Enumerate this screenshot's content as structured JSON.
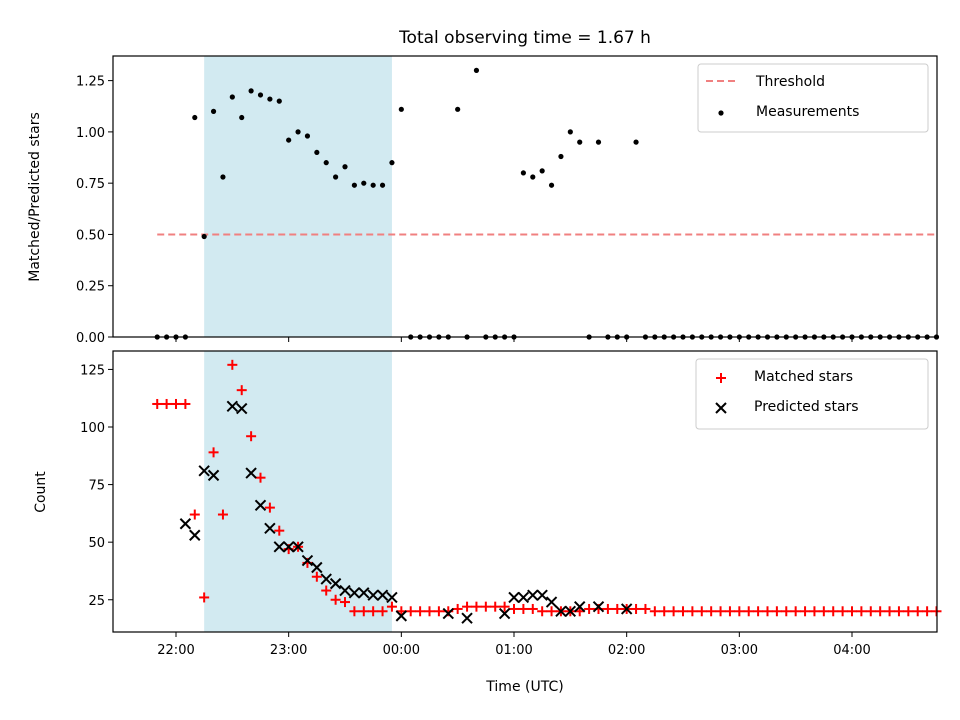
{
  "chart_data": [
    {
      "type": "scatter",
      "title": "Total observing time = 1.67 h",
      "xlabel": "",
      "ylabel": "Matched/Predicted stars",
      "xlim": [
        "21:30",
        "04:50"
      ],
      "ylim": [
        0,
        1.37
      ],
      "yticks": [
        "0.00",
        "0.25",
        "0.50",
        "0.75",
        "1.00",
        "1.25"
      ],
      "grid": false,
      "legend_position": "top-right",
      "shaded_interval": {
        "start": "22:15",
        "end": "23:55",
        "color": "#add8e6"
      },
      "threshold": {
        "name": "Threshold",
        "value": 0.5,
        "x_start": "21:50",
        "x_end": "04:45",
        "color": "#f08080",
        "style": "dashed"
      },
      "series": [
        {
          "name": "Measurements",
          "color": "#000000",
          "marker": "dot",
          "x": [
            "21:50",
            "21:55",
            "22:00",
            "22:05",
            "22:10",
            "22:15",
            "22:20",
            "22:25",
            "22:30",
            "22:35",
            "22:40",
            "22:45",
            "22:50",
            "22:55",
            "23:00",
            "23:05",
            "23:10",
            "23:15",
            "23:20",
            "23:25",
            "23:30",
            "23:35",
            "23:40",
            "23:45",
            "23:50",
            "23:55",
            "00:00",
            "00:05",
            "00:10",
            "00:15",
            "00:20",
            "00:25",
            "00:30",
            "00:35",
            "00:40",
            "00:45",
            "00:50",
            "00:55",
            "01:00",
            "01:05",
            "01:10",
            "01:15",
            "01:20",
            "01:25",
            "01:30",
            "01:35",
            "01:40",
            "01:45",
            "01:50",
            "01:55",
            "02:00",
            "02:05",
            "02:10",
            "02:15",
            "02:20",
            "02:25",
            "02:30",
            "02:35",
            "02:40",
            "02:45",
            "02:50",
            "02:55",
            "03:00",
            "03:05",
            "03:10",
            "03:15",
            "03:20",
            "03:25",
            "03:30",
            "03:35",
            "03:40",
            "03:45",
            "03:50",
            "03:55",
            "04:00",
            "04:05",
            "04:10",
            "04:15",
            "04:20",
            "04:25",
            "04:30",
            "04:35",
            "04:40",
            "04:45"
          ],
          "y": [
            0,
            0,
            0,
            0,
            1.07,
            0.49,
            1.1,
            0.78,
            1.17,
            1.07,
            1.2,
            1.18,
            1.16,
            1.15,
            0.96,
            1.0,
            0.98,
            0.9,
            0.85,
            0.78,
            0.83,
            0.74,
            0.75,
            0.74,
            0.74,
            0.85,
            1.11,
            0,
            0,
            0,
            0,
            0,
            1.11,
            0,
            1.3,
            0,
            0,
            0,
            0,
            0.8,
            0.78,
            0.81,
            0.74,
            0.88,
            1.0,
            0.95,
            0,
            0.95,
            0,
            0,
            0,
            0.95,
            0,
            0,
            0,
            0,
            0,
            0,
            0,
            0,
            0,
            0,
            0,
            0,
            0,
            0,
            0,
            0,
            0,
            0,
            0,
            0,
            0,
            0,
            0,
            0,
            0,
            0,
            0,
            0,
            0,
            0,
            0,
            0
          ]
        }
      ]
    },
    {
      "type": "scatter",
      "title": "",
      "xlabel": "Time (UTC)",
      "ylabel": "Count",
      "xlim": [
        "21:30",
        "04:50"
      ],
      "ylim": [
        11,
        133
      ],
      "yticks": [
        "25",
        "50",
        "75",
        "100",
        "125"
      ],
      "xticks": [
        "22:00",
        "23:00",
        "00:00",
        "01:00",
        "02:00",
        "03:00",
        "04:00"
      ],
      "grid": false,
      "legend_position": "top-right",
      "shaded_interval": {
        "start": "22:15",
        "end": "23:55",
        "color": "#add8e6"
      },
      "x": [
        "21:50",
        "21:55",
        "22:00",
        "22:05",
        "22:10",
        "22:15",
        "22:20",
        "22:25",
        "22:30",
        "22:35",
        "22:40",
        "22:45",
        "22:50",
        "22:55",
        "23:00",
        "23:05",
        "23:10",
        "23:15",
        "23:20",
        "23:25",
        "23:30",
        "23:35",
        "23:40",
        "23:45",
        "23:50",
        "23:55",
        "00:00",
        "00:05",
        "00:10",
        "00:15",
        "00:20",
        "00:25",
        "00:30",
        "00:35",
        "00:40",
        "00:45",
        "00:50",
        "00:55",
        "01:00",
        "01:05",
        "01:10",
        "01:15",
        "01:20",
        "01:25",
        "01:30",
        "01:35",
        "01:40",
        "01:45",
        "01:50",
        "01:55",
        "02:00",
        "02:05",
        "02:10",
        "02:15",
        "02:20",
        "02:25",
        "02:30",
        "02:35",
        "02:40",
        "02:45",
        "02:50",
        "02:55",
        "03:00",
        "03:05",
        "03:10",
        "03:15",
        "03:20",
        "03:25",
        "03:30",
        "03:35",
        "03:40",
        "03:45",
        "03:50",
        "03:55",
        "04:00",
        "04:05",
        "04:10",
        "04:15",
        "04:20",
        "04:25",
        "04:30",
        "04:35",
        "04:40",
        "04:45"
      ],
      "series": [
        {
          "name": "Matched stars",
          "color": "#ff0000",
          "marker": "plus",
          "y": [
            110,
            110,
            110,
            110,
            62,
            26,
            89,
            62,
            127,
            116,
            96,
            78,
            65,
            55,
            47,
            48,
            41,
            35,
            29,
            25,
            24,
            20,
            20,
            20,
            20,
            22,
            20,
            20,
            20,
            20,
            20,
            20,
            21,
            22,
            22,
            22,
            22,
            22,
            21,
            21,
            21,
            20,
            20,
            20,
            20,
            20,
            21,
            21,
            21,
            21,
            21,
            21,
            21,
            20,
            20,
            20,
            20,
            20,
            20,
            20,
            20,
            20,
            20,
            20,
            20,
            20,
            20,
            20,
            20,
            20,
            20,
            20,
            20,
            20,
            20,
            20,
            20,
            20,
            20,
            20,
            20,
            20,
            20,
            20
          ]
        },
        {
          "name": "Predicted stars",
          "color": "#000000",
          "marker": "x",
          "x": [
            "22:05",
            "22:10",
            "22:15",
            "22:20",
            "22:30",
            "22:35",
            "22:40",
            "22:45",
            "22:50",
            "22:55",
            "23:00",
            "23:05",
            "23:10",
            "23:15",
            "23:20",
            "23:25",
            "23:30",
            "23:35",
            "23:40",
            "23:45",
            "23:50",
            "23:55",
            "00:00",
            "00:25",
            "00:35",
            "00:55",
            "01:00",
            "01:05",
            "01:10",
            "01:15",
            "01:20",
            "01:25",
            "01:30",
            "01:35",
            "01:45",
            "02:00"
          ],
          "y": [
            58,
            53,
            81,
            79,
            109,
            108,
            80,
            66,
            56,
            48,
            48,
            48,
            42,
            39,
            34,
            32,
            29,
            28,
            28,
            27,
            27,
            26,
            18,
            19,
            17,
            19,
            26,
            26,
            27,
            27,
            24,
            20,
            20,
            22,
            22,
            21
          ]
        }
      ]
    }
  ]
}
